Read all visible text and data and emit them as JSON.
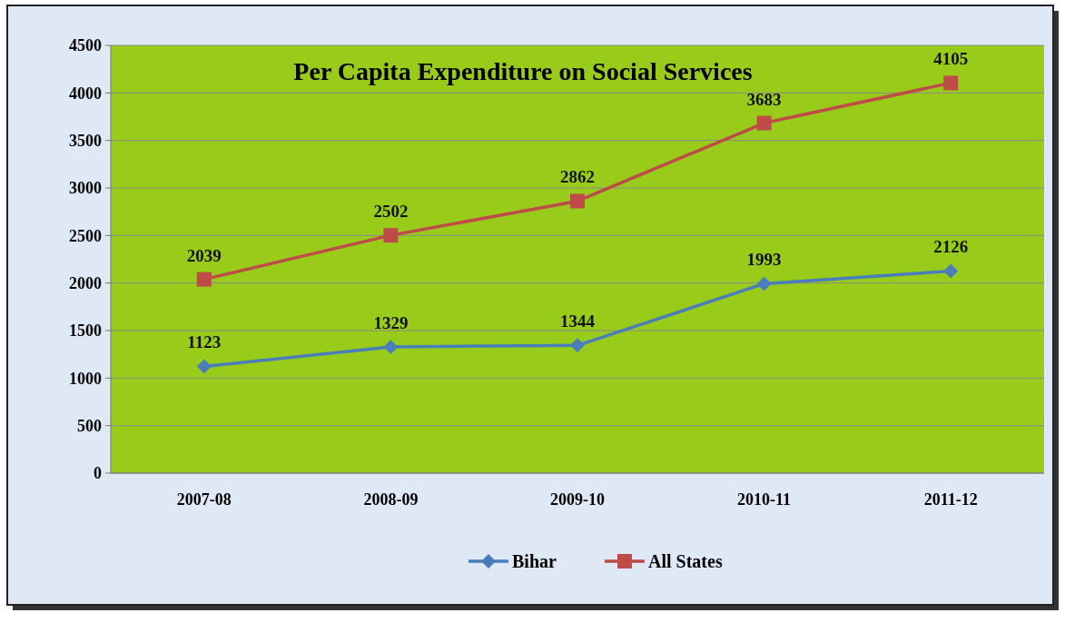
{
  "chart_data": {
    "type": "line",
    "title": "Per Capita Expenditure on Social Services",
    "categories": [
      "2007-08",
      "2008-09",
      "2009-10",
      "2010-11",
      "2011-12"
    ],
    "series": [
      {
        "name": "Bihar",
        "color": "#4a7ebb",
        "marker": "diamond",
        "values": [
          1123,
          1329,
          1344,
          1993,
          2126
        ]
      },
      {
        "name": "All States",
        "color": "#be4b48",
        "marker": "square",
        "values": [
          2039,
          2502,
          2862,
          3683,
          4105
        ]
      }
    ],
    "ylim": [
      0,
      4500
    ],
    "yticks": [
      0,
      500,
      1000,
      1500,
      2000,
      2500,
      3000,
      3500,
      4000,
      4500
    ],
    "grid": "y",
    "legend": "bottom",
    "data_labels": true,
    "line_style": "solid"
  }
}
